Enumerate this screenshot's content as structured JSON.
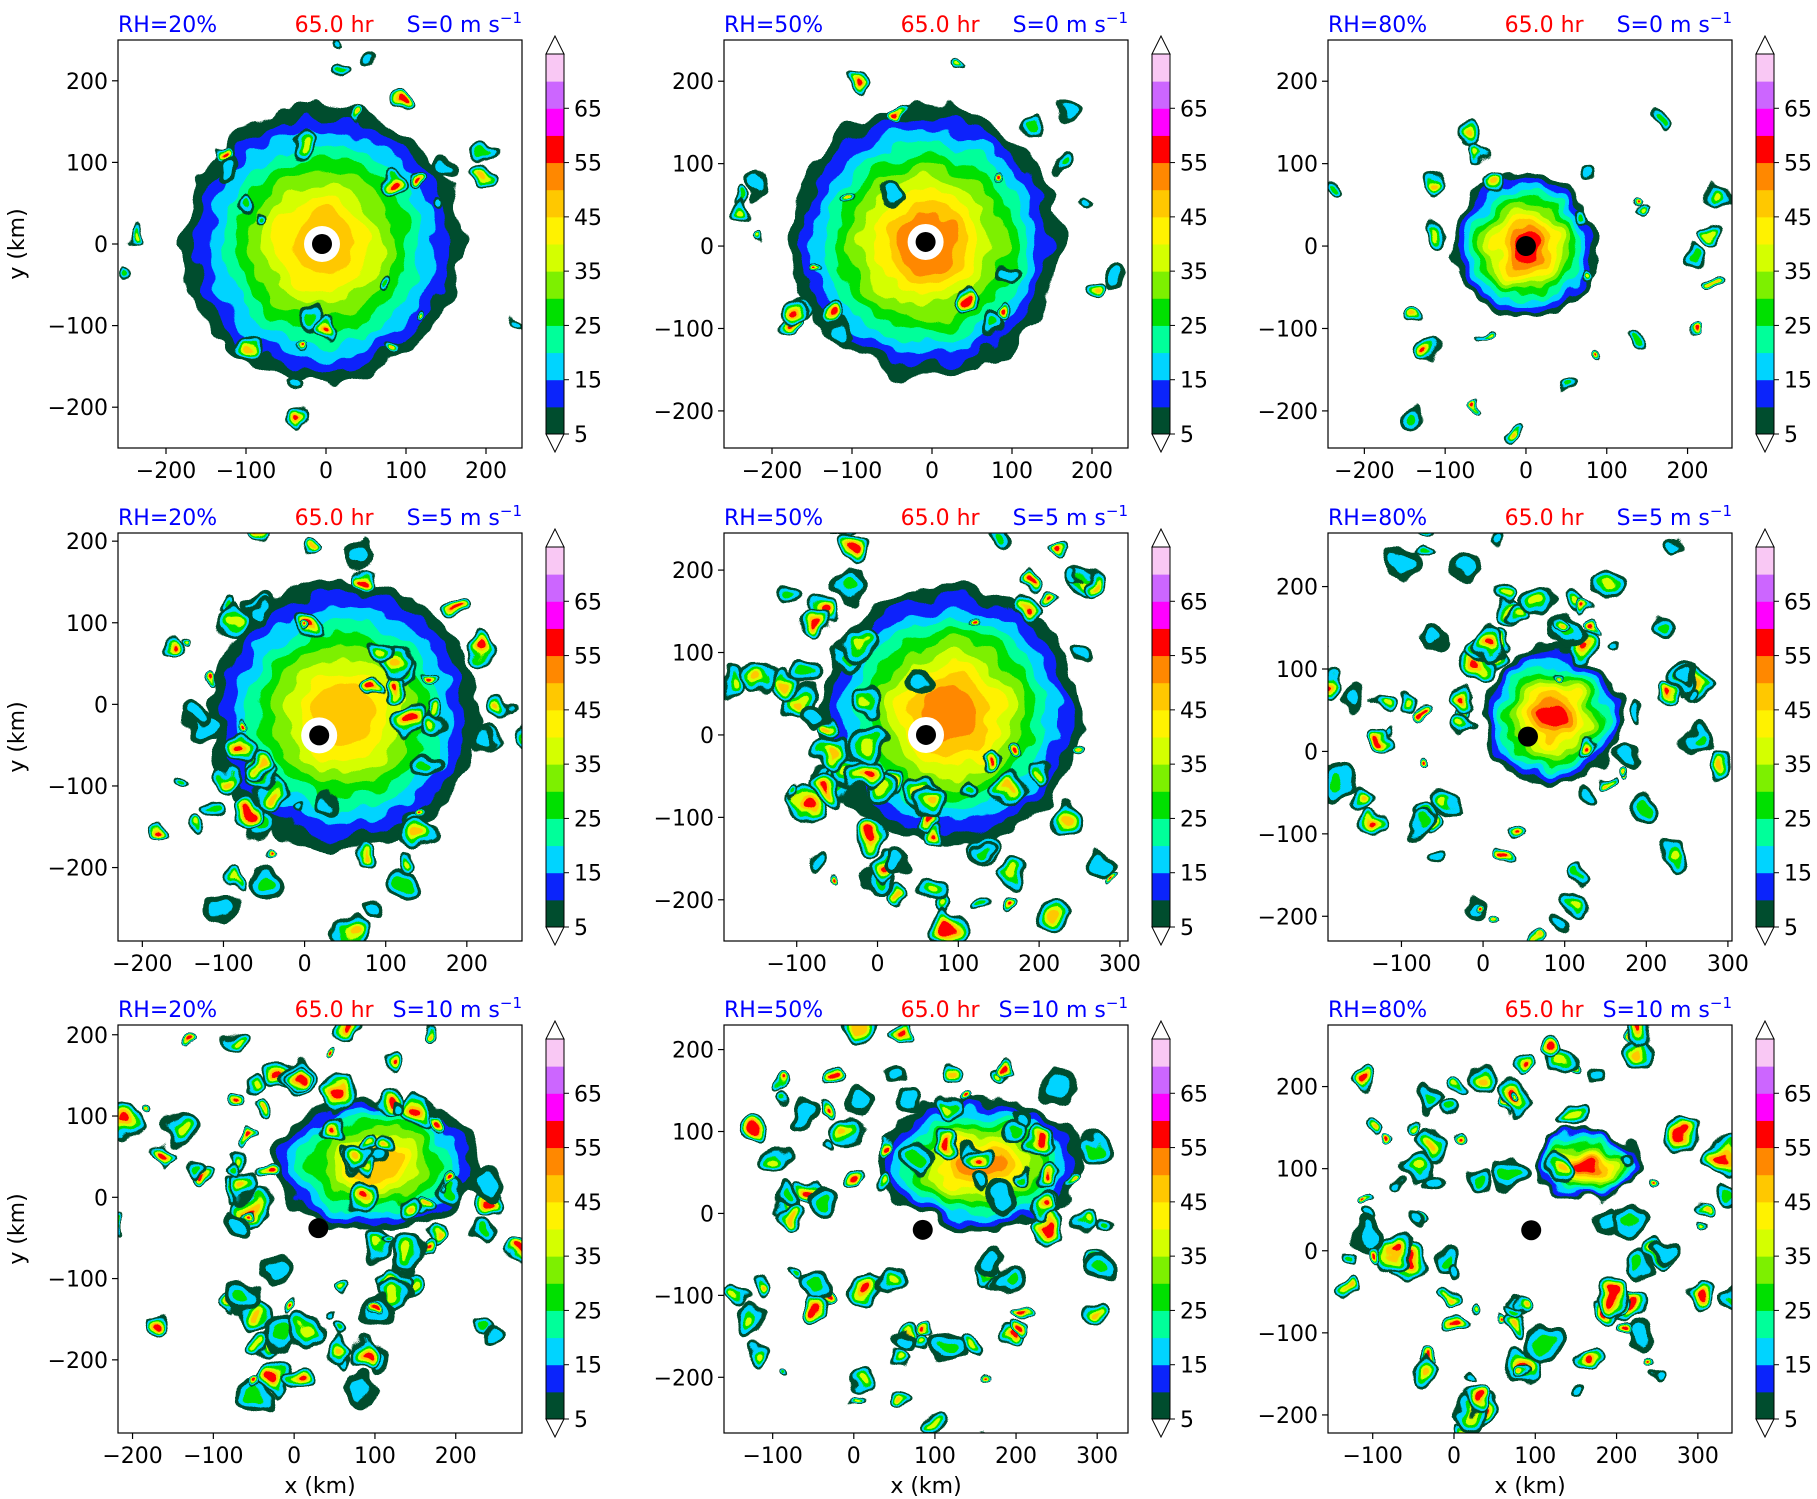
{
  "chart_data": {
    "type": "heatmap",
    "xlabel": "x (km)",
    "ylabel": "y (km)",
    "colorbar": {
      "levels": [
        5,
        10,
        15,
        20,
        25,
        30,
        35,
        40,
        45,
        50,
        55,
        60,
        65,
        70
      ],
      "tick_labels": [
        "5",
        "15",
        "25",
        "35",
        "45",
        "55",
        "65"
      ],
      "colors": [
        "#004d2e",
        "#0b24fb",
        "#00d4ff",
        "#00ff9a",
        "#00e000",
        "#7df000",
        "#d4ff00",
        "#fff200",
        "#ffc800",
        "#ff8800",
        "#ff0000",
        "#ff00ff",
        "#cc66ff",
        "#f9c8f4"
      ],
      "extend": "both"
    },
    "panels": [
      {
        "rh_label": "RH=20%",
        "time_label": "65.0 hr",
        "shear_label": "S=0 m s",
        "shear_sup": "−1",
        "xlim": [
          -260,
          245
        ],
        "ylim": [
          -250,
          250
        ],
        "xticks": [
          -200,
          -100,
          0,
          100,
          200
        ],
        "yticks": [
          -200,
          -100,
          0,
          100,
          200
        ],
        "xtick_labels": [
          "−200",
          "−100",
          "0",
          "100",
          "200"
        ],
        "ytick_labels": [
          "−200",
          "−100",
          "0",
          "100",
          "200"
        ],
        "center": [
          -5,
          0
        ],
        "show_xlabel": false,
        "show_ylabel": true
      },
      {
        "rh_label": "RH=50%",
        "time_label": "65.0 hr",
        "shear_label": "S=0 m s",
        "shear_sup": "−1",
        "xlim": [
          -260,
          245
        ],
        "ylim": [
          -245,
          250
        ],
        "xticks": [
          -200,
          -100,
          0,
          100,
          200
        ],
        "yticks": [
          -200,
          -100,
          0,
          100,
          200
        ],
        "xtick_labels": [
          "−200",
          "−100",
          "0",
          "100",
          "200"
        ],
        "ytick_labels": [
          "−200",
          "−100",
          "0",
          "100",
          "200"
        ],
        "center": [
          -8,
          5
        ],
        "show_xlabel": false,
        "show_ylabel": false
      },
      {
        "rh_label": "RH=80%",
        "time_label": "65.0 hr",
        "shear_label": "S=0 m s",
        "shear_sup": "−1",
        "xlim": [
          -245,
          255
        ],
        "ylim": [
          -245,
          250
        ],
        "xticks": [
          -200,
          -100,
          0,
          100,
          200
        ],
        "yticks": [
          -200,
          -100,
          0,
          100,
          200
        ],
        "xtick_labels": [
          "−200",
          "−100",
          "0",
          "100",
          "200"
        ],
        "ytick_labels": [
          "−200",
          "−100",
          "0",
          "100",
          "200"
        ],
        "center": [
          0,
          0
        ],
        "show_xlabel": false,
        "show_ylabel": false
      },
      {
        "rh_label": "RH=20%",
        "time_label": "65.0 hr",
        "shear_label": "S=5 m s",
        "shear_sup": "−1",
        "xlim": [
          -230,
          268
        ],
        "ylim": [
          -290,
          210
        ],
        "xticks": [
          -200,
          -100,
          0,
          100,
          200
        ],
        "yticks": [
          -200,
          -100,
          0,
          100,
          200
        ],
        "xtick_labels": [
          "−200",
          "−100",
          "0",
          "100",
          "200"
        ],
        "ytick_labels": [
          "−200",
          "−100",
          "0",
          "100",
          "200"
        ],
        "center": [
          18,
          -38
        ],
        "show_xlabel": false,
        "show_ylabel": true
      },
      {
        "rh_label": "RH=50%",
        "time_label": "65.0 hr",
        "shear_label": "S=5 m s",
        "shear_sup": "−1",
        "xlim": [
          -190,
          310
        ],
        "ylim": [
          -250,
          245
        ],
        "xticks": [
          -100,
          0,
          100,
          200,
          300
        ],
        "yticks": [
          -200,
          -100,
          0,
          100,
          200
        ],
        "xtick_labels": [
          "−100",
          "0",
          "100",
          "200",
          "300"
        ],
        "ytick_labels": [
          "−200",
          "−100",
          "0",
          "100",
          "200"
        ],
        "center": [
          60,
          0
        ],
        "show_xlabel": false,
        "show_ylabel": false
      },
      {
        "rh_label": "RH=80%",
        "time_label": "65.0 hr",
        "shear_label": "S=5 m s",
        "shear_sup": "−1",
        "xlim": [
          -190,
          305
        ],
        "ylim": [
          -230,
          265
        ],
        "xticks": [
          -100,
          0,
          100,
          200,
          300
        ],
        "yticks": [
          -200,
          -100,
          0,
          100,
          200
        ],
        "xtick_labels": [
          "−100",
          "0",
          "100",
          "200",
          "300"
        ],
        "ytick_labels": [
          "−200",
          "−100",
          "0",
          "100",
          "200"
        ],
        "center": [
          55,
          18
        ],
        "show_xlabel": false,
        "show_ylabel": false
      },
      {
        "rh_label": "RH=20%",
        "time_label": "65.0 hr",
        "shear_label": "S=10 m s",
        "shear_sup": "−1",
        "xlim": [
          -218,
          282
        ],
        "ylim": [
          -290,
          212
        ],
        "xticks": [
          -200,
          -100,
          0,
          100,
          200
        ],
        "yticks": [
          -200,
          -100,
          0,
          100,
          200
        ],
        "xtick_labels": [
          "−200",
          "−100",
          "0",
          "100",
          "200"
        ],
        "ytick_labels": [
          "−200",
          "−100",
          "0",
          "100",
          "200"
        ],
        "center": [
          30,
          -38
        ],
        "show_xlabel": true,
        "show_ylabel": true
      },
      {
        "rh_label": "RH=50%",
        "time_label": "65.0 hr",
        "shear_label": "S=10 m s",
        "shear_sup": "−1",
        "xlim": [
          -160,
          338
        ],
        "ylim": [
          -268,
          230
        ],
        "xticks": [
          -100,
          0,
          100,
          200,
          300
        ],
        "yticks": [
          -200,
          -100,
          0,
          100,
          200
        ],
        "xtick_labels": [
          "−100",
          "0",
          "100",
          "200",
          "300"
        ],
        "ytick_labels": [
          "−200",
          "−100",
          "0",
          "100",
          "200"
        ],
        "center": [
          85,
          -20
        ],
        "show_xlabel": true,
        "show_ylabel": false
      },
      {
        "rh_label": "RH=80%",
        "time_label": "65.0 hr",
        "shear_label": "S=10 m s",
        "shear_sup": "−1",
        "xlim": [
          -155,
          342
        ],
        "ylim": [
          -222,
          275
        ],
        "xticks": [
          -100,
          0,
          100,
          200,
          300
        ],
        "yticks": [
          -200,
          -100,
          0,
          100,
          200
        ],
        "xtick_labels": [
          "−100",
          "0",
          "100",
          "200",
          "300"
        ],
        "ytick_labels": [
          "−200",
          "−100",
          "0",
          "100",
          "200"
        ],
        "center": [
          95,
          25
        ],
        "show_xlabel": true,
        "show_ylabel": false
      }
    ],
    "title_colors": {
      "rh": "#0000ff",
      "time": "#ff0000",
      "shear": "#0000ff"
    }
  }
}
